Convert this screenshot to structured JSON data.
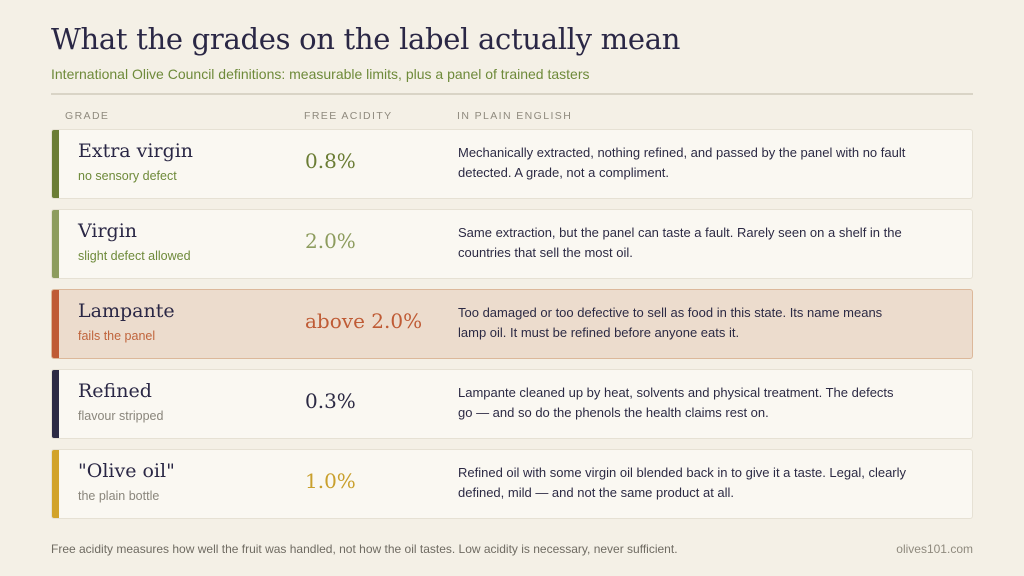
{
  "header": {
    "title": "What the grades on the label actually mean",
    "subtitle": "International Olive Council definitions: measurable limits, plus a panel of trained tasters"
  },
  "columns": {
    "grade": "GRADE",
    "acidity": "FREE ACIDITY",
    "plain": "IN PLAIN ENGLISH"
  },
  "grades": [
    {
      "name": "Extra virgin",
      "note": "no sensory defect",
      "acidity": "0.8%",
      "description": "Mechanically extracted, nothing refined, and passed by the panel with no fault detected. A grade, not a compliment.",
      "accent": "#6b7d35",
      "note_color": "#6e8a3a",
      "acid_color": "#6b7d35",
      "highlight": false
    },
    {
      "name": "Virgin",
      "note": "slight defect allowed",
      "acidity": "2.0%",
      "description": "Same extraction, but the panel can taste a fault. Rarely seen on a shelf in the countries that sell the most oil.",
      "accent": "#8d9c5e",
      "note_color": "#6e8a3a",
      "acid_color": "#8d9c5e",
      "highlight": false
    },
    {
      "name": "Lampante",
      "note": "fails the panel",
      "acidity": "above 2.0%",
      "description": "Too damaged or too defective to sell as food in this state. Its name means lamp oil. It must be refined before anyone eats it.",
      "accent": "#bf5b35",
      "note_color": "#c0643c",
      "acid_color": "#bf5b35",
      "highlight": true
    },
    {
      "name": "Refined",
      "note": "flavour stripped",
      "acidity": "0.3%",
      "description": "Lampante cleaned up by heat, solvents and physical treatment. The defects go — and so do the phenols the health claims rest on.",
      "accent": "#2c2a44",
      "note_color": "#8a867c",
      "acid_color": "#2c2a44",
      "highlight": false
    },
    {
      "name": "\"Olive oil\"",
      "note": "the plain bottle",
      "acidity": "1.0%",
      "description": "Refined oil with some virgin oil blended back in to give it a taste. Legal, clearly defined, mild — and not the same product at all.",
      "accent": "#d2a32a",
      "note_color": "#8a867c",
      "acid_color": "#c9a02d",
      "highlight": false
    }
  ],
  "footer": {
    "note": "Free acidity measures how well the fruit was handled, not how the oil tastes. Low acidity is necessary, never sufficient.",
    "site": "olives101.com"
  }
}
